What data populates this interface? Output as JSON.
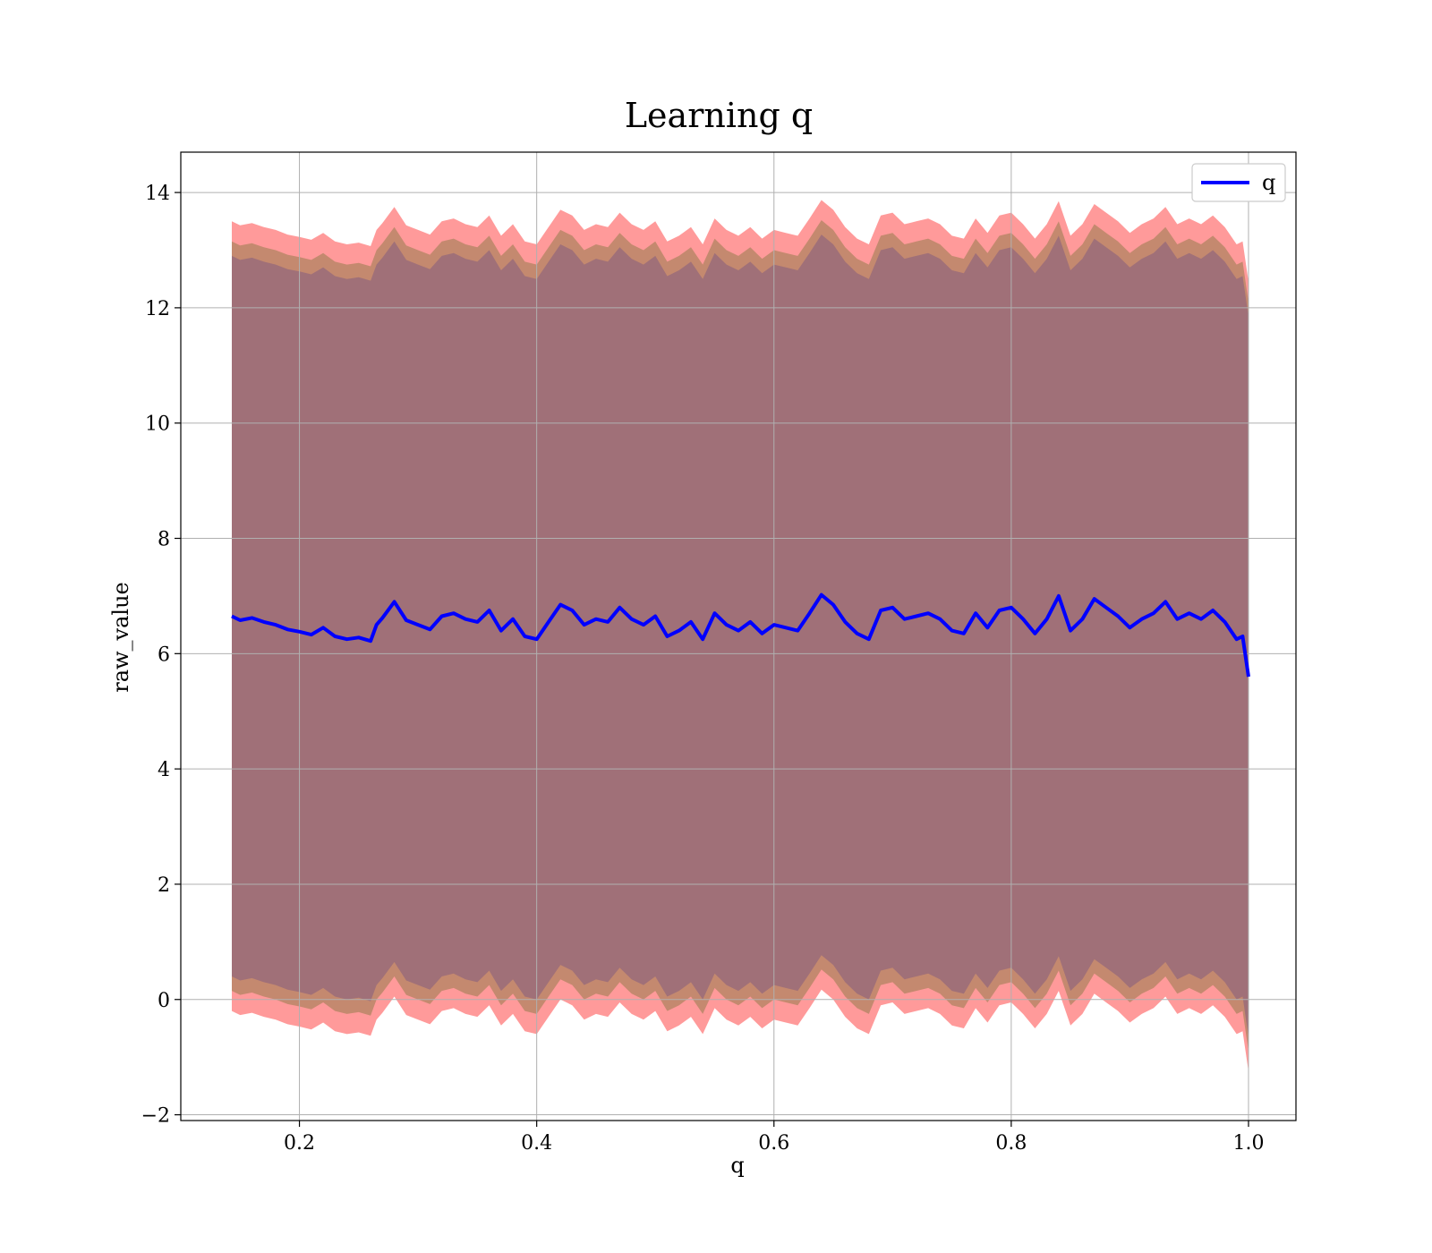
{
  "chart_data": {
    "type": "line",
    "title": "Learning q",
    "xlabel": "q",
    "ylabel": "raw_value",
    "xlim": [
      0.1,
      1.04
    ],
    "ylim": [
      -2.1,
      14.7
    ],
    "x_ticks": [
      0.2,
      0.4,
      0.6,
      0.8,
      1.0
    ],
    "x_tick_labels": [
      "0.2",
      "0.4",
      "0.6",
      "0.8",
      "1.0"
    ],
    "y_ticks": [
      -2,
      0,
      2,
      4,
      6,
      8,
      10,
      12,
      14
    ],
    "y_tick_labels": [
      "−2",
      "0",
      "2",
      "4",
      "6",
      "8",
      "10",
      "12",
      "14"
    ],
    "grid": true,
    "legend_position": "top-right",
    "colors": {
      "line": "#0000ff",
      "band_outer": "#ff9a9a",
      "band_mid": "#c4896f",
      "band_inner": "#a07078"
    },
    "series": [
      {
        "name": "q",
        "x": [
          0.143,
          0.15,
          0.16,
          0.17,
          0.18,
          0.19,
          0.2,
          0.21,
          0.22,
          0.23,
          0.24,
          0.25,
          0.26,
          0.265,
          0.27,
          0.28,
          0.29,
          0.3,
          0.31,
          0.32,
          0.33,
          0.34,
          0.35,
          0.36,
          0.37,
          0.38,
          0.39,
          0.4,
          0.41,
          0.42,
          0.43,
          0.44,
          0.45,
          0.46,
          0.47,
          0.48,
          0.49,
          0.5,
          0.51,
          0.52,
          0.53,
          0.54,
          0.55,
          0.56,
          0.57,
          0.58,
          0.59,
          0.6,
          0.61,
          0.62,
          0.63,
          0.64,
          0.65,
          0.66,
          0.67,
          0.68,
          0.69,
          0.7,
          0.71,
          0.72,
          0.73,
          0.74,
          0.75,
          0.76,
          0.77,
          0.78,
          0.79,
          0.8,
          0.81,
          0.82,
          0.83,
          0.84,
          0.85,
          0.86,
          0.87,
          0.88,
          0.89,
          0.9,
          0.91,
          0.92,
          0.93,
          0.94,
          0.95,
          0.96,
          0.97,
          0.98,
          0.99,
          0.995,
          1.0
        ],
        "y": [
          6.65,
          6.58,
          6.62,
          6.55,
          6.5,
          6.42,
          6.38,
          6.33,
          6.45,
          6.3,
          6.25,
          6.28,
          6.22,
          6.5,
          6.62,
          6.9,
          6.58,
          6.5,
          6.42,
          6.65,
          6.7,
          6.6,
          6.55,
          6.75,
          6.4,
          6.6,
          6.3,
          6.25,
          6.55,
          6.85,
          6.75,
          6.5,
          6.6,
          6.55,
          6.8,
          6.6,
          6.5,
          6.65,
          6.3,
          6.4,
          6.55,
          6.25,
          6.7,
          6.5,
          6.4,
          6.55,
          6.35,
          6.5,
          6.45,
          6.4,
          6.7,
          7.02,
          6.85,
          6.55,
          6.35,
          6.25,
          6.75,
          6.8,
          6.6,
          6.65,
          6.7,
          6.6,
          6.4,
          6.35,
          6.7,
          6.45,
          6.75,
          6.8,
          6.6,
          6.35,
          6.6,
          7.0,
          6.4,
          6.6,
          6.95,
          6.8,
          6.65,
          6.45,
          6.6,
          6.7,
          6.9,
          6.6,
          6.7,
          6.6,
          6.75,
          6.55,
          6.25,
          6.3,
          5.6
        ]
      }
    ],
    "bands": [
      {
        "offset_upper": 6.85,
        "offset_lower": -6.85
      },
      {
        "offset_upper": 6.5,
        "offset_lower": -6.5
      },
      {
        "offset_upper": 6.25,
        "offset_lower": -6.25
      }
    ]
  }
}
